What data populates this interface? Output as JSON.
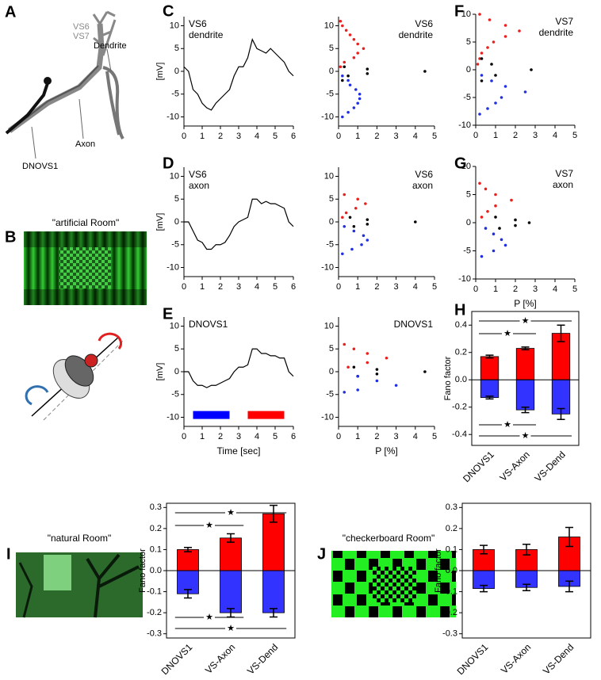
{
  "panels": {
    "A": {
      "letter": "A",
      "labels": [
        "VS6",
        "VS7",
        "Dendrite",
        "Axon",
        "DNOVS1"
      ]
    },
    "B": {
      "letter": "B",
      "title": "\"artificial Room\""
    },
    "I": {
      "title": "\"natural Room\""
    },
    "J": {
      "title": "\"checkerboard Room\""
    }
  },
  "chart_data": [
    {
      "type": "line",
      "panel": "C",
      "annotation": [
        "VS6",
        "dendrite"
      ],
      "ylabel": "[mV]",
      "xlim": [
        0,
        6
      ],
      "xticks": [
        0,
        1,
        2,
        3,
        4,
        5,
        6
      ],
      "ylim": [
        -12,
        12
      ],
      "yticks": [
        -10,
        -5,
        0,
        5,
        10
      ],
      "series": [
        {
          "color": "#000000",
          "x": [
            0,
            0.25,
            0.5,
            0.75,
            1,
            1.25,
            1.5,
            1.75,
            2,
            2.25,
            2.5,
            2.75,
            3,
            3.25,
            3.5,
            3.75,
            4,
            4.25,
            4.5,
            4.75,
            5,
            5.25,
            5.5,
            5.75,
            6
          ],
          "values": [
            1,
            0,
            -4,
            -5,
            -7,
            -8,
            -8.5,
            -7,
            -6,
            -5,
            -4,
            -1,
            1,
            1,
            3,
            7,
            5,
            4.5,
            4,
            5,
            4,
            3,
            2,
            0,
            -1
          ]
        }
      ]
    },
    {
      "type": "scatter",
      "annotation": [
        "VS6",
        "dendrite"
      ],
      "xlim": [
        0,
        5
      ],
      "xticks": [
        0,
        1,
        2,
        3,
        4,
        5
      ],
      "ylim": [
        -12,
        12
      ],
      "yticks": [
        -10,
        -5,
        0,
        5,
        10
      ],
      "series": [
        {
          "color": "#e8201e",
          "x": [
            0.1,
            0.3,
            0.8,
            1.0,
            1.3,
            1.0,
            0.8,
            0.6,
            0.4,
            0.2,
            0.1
          ],
          "values": [
            1,
            2,
            3,
            4,
            5,
            6,
            7,
            8,
            9,
            10,
            11
          ]
        },
        {
          "color": "#000000",
          "x": [
            0.2,
            0.5,
            1.5,
            4.5,
            1.5,
            0.3
          ],
          "values": [
            -2,
            -1,
            -0.5,
            0,
            0.5,
            1
          ]
        },
        {
          "color": "#2030e0",
          "x": [
            0.2,
            0.5,
            0.6,
            0.9,
            1.1,
            1.1,
            1.0,
            0.8,
            0.5,
            0.2
          ],
          "values": [
            -1,
            -2,
            -3,
            -4,
            -5,
            -6,
            -7,
            -8,
            -9,
            -10
          ]
        }
      ]
    },
    {
      "type": "scatter",
      "panel": "F",
      "annotation": [
        "VS7",
        "dendrite"
      ],
      "xlim": [
        0,
        5
      ],
      "xticks": [
        0,
        1,
        2,
        3,
        4,
        5
      ],
      "ylim": [
        -10,
        10
      ],
      "yticks": [
        -10,
        -5,
        0,
        5,
        10
      ],
      "series": [
        {
          "color": "#e8201e",
          "x": [
            0.1,
            0.2,
            0.3,
            0.6,
            0.9,
            1.5,
            2.2,
            1.5,
            0.7,
            0.2
          ],
          "values": [
            1,
            2,
            3,
            4,
            5,
            6,
            7,
            8,
            9,
            10
          ]
        },
        {
          "color": "#000000",
          "x": [
            0.3,
            1.0,
            2.8,
            0.8,
            0.3
          ],
          "values": [
            -2,
            -1,
            0,
            1,
            2
          ]
        },
        {
          "color": "#2030e0",
          "x": [
            0.3,
            0.8,
            1.5,
            2.5,
            1.3,
            1.0,
            0.6,
            0.2
          ],
          "values": [
            -1,
            -2,
            -3,
            -4,
            -5,
            -6,
            -7,
            -8
          ]
        }
      ]
    },
    {
      "type": "line",
      "panel": "D",
      "annotation": [
        "VS6",
        "axon"
      ],
      "ylabel": "[mV]",
      "xlim": [
        0,
        6
      ],
      "xticks": [
        0,
        1,
        2,
        3,
        4,
        5,
        6
      ],
      "ylim": [
        -12,
        12
      ],
      "yticks": [
        -10,
        -5,
        0,
        5,
        10
      ],
      "series": [
        {
          "color": "#000000",
          "x": [
            0,
            0.25,
            0.5,
            0.75,
            1,
            1.25,
            1.5,
            1.75,
            2,
            2.25,
            2.5,
            2.75,
            3,
            3.25,
            3.5,
            3.75,
            4,
            4.25,
            4.5,
            4.75,
            5,
            5.25,
            5.5,
            5.75,
            6
          ],
          "values": [
            0,
            0,
            -2,
            -4,
            -4.5,
            -6,
            -6,
            -5,
            -5,
            -4.5,
            -3,
            -1,
            0,
            0.5,
            1,
            5,
            5,
            4,
            4.5,
            4,
            4,
            3.5,
            3,
            0,
            -1
          ]
        }
      ]
    },
    {
      "type": "scatter",
      "annotation": [
        "VS6",
        "axon"
      ],
      "xlim": [
        0,
        5
      ],
      "xticks": [
        0,
        1,
        2,
        3,
        4,
        5
      ],
      "ylim": [
        -12,
        12
      ],
      "yticks": [
        -10,
        -5,
        0,
        5,
        10
      ],
      "series": [
        {
          "color": "#e8201e",
          "x": [
            0.2,
            0.4,
            0.9,
            1.4,
            1.0,
            0.3
          ],
          "values": [
            1,
            2,
            3,
            4,
            5,
            6
          ]
        },
        {
          "color": "#000000",
          "x": [
            0.8,
            1.5,
            4.0,
            1.5,
            0.6
          ],
          "values": [
            -1,
            -0.5,
            0,
            0.5,
            1
          ]
        },
        {
          "color": "#2030e0",
          "x": [
            0.3,
            0.8,
            1.3,
            1.5,
            1.2,
            0.7,
            0.2
          ],
          "values": [
            -1,
            -2,
            -3,
            -4,
            -5,
            -6,
            -7
          ]
        }
      ]
    },
    {
      "type": "scatter",
      "panel": "G",
      "annotation": [
        "VS7",
        "axon"
      ],
      "xlabel": "P [%]",
      "xlim": [
        0,
        5
      ],
      "xticks": [
        0,
        1,
        2,
        3,
        4,
        5
      ],
      "ylim": [
        -10,
        10
      ],
      "yticks": [
        -10,
        -5,
        0,
        5,
        10
      ],
      "series": [
        {
          "color": "#e8201e",
          "x": [
            0.3,
            0.6,
            1.0,
            1.8,
            1.0,
            0.5,
            0.2
          ],
          "values": [
            1,
            2,
            3,
            4,
            5,
            6,
            7
          ]
        },
        {
          "color": "#000000",
          "x": [
            1.2,
            2.0,
            2.7,
            2.0,
            1.0
          ],
          "values": [
            -1,
            -0.5,
            0,
            0.5,
            1
          ]
        },
        {
          "color": "#2030e0",
          "x": [
            0.5,
            0.9,
            1.3,
            1.5,
            0.9,
            0.3
          ],
          "values": [
            -1,
            -2,
            -3,
            -4,
            -5,
            -6
          ]
        }
      ]
    },
    {
      "type": "line",
      "panel": "E",
      "annotation": [
        "DNOVS1"
      ],
      "ylabel": "[mV]",
      "xlabel": "Time [sec]",
      "xlim": [
        0,
        6
      ],
      "xticks": [
        0,
        1,
        2,
        3,
        4,
        5,
        6
      ],
      "ylim": [
        -12,
        12
      ],
      "yticks": [
        -10,
        -5,
        0,
        5,
        10
      ],
      "stimuli": [
        {
          "color": "#0000ff",
          "x": [
            0.5,
            2.5
          ],
          "y": -9.5
        },
        {
          "color": "#ff0000",
          "x": [
            3.5,
            5.5
          ],
          "y": -9.5
        }
      ],
      "series": [
        {
          "color": "#000000",
          "x": [
            0,
            0.25,
            0.5,
            0.75,
            1,
            1.25,
            1.5,
            1.75,
            2,
            2.25,
            2.5,
            2.75,
            3,
            3.25,
            3.5,
            3.75,
            4,
            4.25,
            4.5,
            4.75,
            5,
            5.25,
            5.5,
            5.75,
            6
          ],
          "values": [
            0,
            0,
            -2,
            -3,
            -3,
            -3.5,
            -3,
            -3,
            -2.5,
            -2,
            -1.5,
            0,
            1,
            1,
            1.5,
            5,
            5,
            4,
            4,
            3.5,
            3.5,
            3,
            3,
            0,
            -1
          ]
        }
      ]
    },
    {
      "type": "scatter",
      "annotation": [
        "DNOVS1"
      ],
      "xlabel": "P [%]",
      "xlim": [
        0,
        5
      ],
      "xticks": [
        0,
        1,
        2,
        3,
        4,
        5
      ],
      "ylim": [
        -12,
        12
      ],
      "yticks": [
        -10,
        -5,
        0,
        5,
        10
      ],
      "series": [
        {
          "color": "#e8201e",
          "x": [
            0.5,
            1.5,
            2.5,
            1.5,
            0.8,
            0.3
          ],
          "values": [
            1,
            2,
            3,
            4,
            5,
            6
          ]
        },
        {
          "color": "#000000",
          "x": [
            1.0,
            2.0,
            4.5,
            2.0,
            0.8
          ],
          "values": [
            -1,
            -0.5,
            0,
            0.5,
            1
          ]
        },
        {
          "color": "#2030e0",
          "x": [
            1.0,
            2.0,
            3.0,
            1.0,
            0.3
          ],
          "values": [
            -1,
            -2,
            -3,
            -4,
            -4.5
          ]
        }
      ]
    },
    {
      "type": "bar",
      "panel": "H",
      "ylabel": "Fano factor",
      "categories": [
        "DNOVS1",
        "VS-Axon",
        "VS-Dend"
      ],
      "ylim": [
        -0.48,
        0.5
      ],
      "yticks": [
        -0.4,
        -0.2,
        {
          "value": 0,
          "label": "0.0"
        },
        0.2,
        0.4
      ],
      "series": [
        {
          "color": "#ff0000",
          "values": [
            0.17,
            0.23,
            0.34
          ],
          "errors": [
            0.01,
            0.01,
            0.06
          ]
        },
        {
          "color": "#3333ff",
          "values": [
            -0.13,
            -0.22,
            -0.25
          ],
          "errors": [
            0.01,
            0.02,
            0.04
          ]
        }
      ],
      "significance": [
        {
          "from": 0,
          "to": 2,
          "side": "top",
          "label": "★"
        },
        {
          "from": 0,
          "to": 1,
          "side": "top",
          "label": "★"
        },
        {
          "from": 0,
          "to": 1,
          "side": "bottom",
          "label": "★"
        },
        {
          "from": 0,
          "to": 2,
          "side": "bottom",
          "label": "★"
        }
      ]
    },
    {
      "type": "bar",
      "panel": "I",
      "ylabel": "Fano factor",
      "categories": [
        "DNOVS1",
        "VS-Axon",
        "VS-Dend"
      ],
      "ylim": [
        -0.32,
        0.32
      ],
      "yticks": [
        -0.3,
        -0.2,
        -0.1,
        {
          "value": 0,
          "label": "0.0"
        },
        0.1,
        0.2,
        0.3
      ],
      "series": [
        {
          "color": "#ff0000",
          "values": [
            0.1,
            0.155,
            0.27
          ],
          "errors": [
            0.01,
            0.02,
            0.04
          ]
        },
        {
          "color": "#3333ff",
          "values": [
            -0.11,
            -0.2,
            -0.2
          ],
          "errors": [
            0.02,
            0.02,
            0.02
          ]
        }
      ],
      "significance": [
        {
          "from": 0,
          "to": 2,
          "side": "top",
          "label": "★"
        },
        {
          "from": 0,
          "to": 1,
          "side": "top",
          "label": "★"
        },
        {
          "from": 0,
          "to": 1,
          "side": "bottom",
          "label": "★"
        },
        {
          "from": 0,
          "to": 2,
          "side": "bottom",
          "label": "★"
        }
      ]
    },
    {
      "type": "bar",
      "panel": "J",
      "ylabel": "Fano factor",
      "categories": [
        "DNOVS1",
        "VS-Axon",
        "VS-Dend"
      ],
      "ylim": [
        -0.32,
        0.32
      ],
      "yticks": [
        -0.3,
        -0.2,
        -0.1,
        {
          "value": 0,
          "label": "0.0"
        },
        0.1,
        0.2,
        0.3
      ],
      "series": [
        {
          "color": "#ff0000",
          "values": [
            0.1,
            0.1,
            0.16
          ],
          "errors": [
            0.02,
            0.025,
            0.045
          ]
        },
        {
          "color": "#3333ff",
          "values": [
            -0.085,
            -0.08,
            -0.075
          ],
          "errors": [
            0.015,
            0.015,
            0.025
          ]
        }
      ]
    }
  ]
}
